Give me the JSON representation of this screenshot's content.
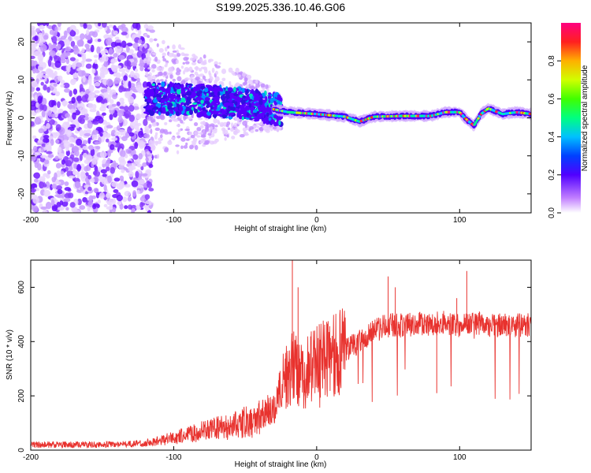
{
  "title": "S199.2025.336.10.46.G06",
  "colors": {
    "snr_line": "#e8322e",
    "axis": "#000000",
    "background": "#ffffff"
  },
  "chart_data": [
    {
      "type": "heatmap",
      "name": "spectrogram",
      "xlabel": "Height of straight line (km)",
      "ylabel": "Frequency (Hz)",
      "xlim": [
        -200,
        150
      ],
      "ylim": [
        -25,
        25
      ],
      "x_ticks": [
        -200,
        -100,
        0,
        100
      ],
      "x_tick_labels": [
        "-200",
        "-100",
        "0",
        "100"
      ],
      "y_ticks": [
        -20,
        -10,
        0,
        10,
        20
      ],
      "y_tick_labels": [
        "-20",
        "-10",
        "0",
        "10",
        "20"
      ],
      "ridge": {
        "x": [
          -120,
          -100,
          -80,
          -60,
          -40,
          -20,
          0,
          20,
          30,
          40,
          60,
          80,
          90,
          100,
          105,
          110,
          115,
          120,
          130,
          140,
          150
        ],
        "freq": [
          5,
          5,
          4.5,
          4,
          3,
          1.5,
          1,
          0.3,
          -1,
          0.3,
          0.5,
          0.5,
          1.5,
          1.5,
          -0.5,
          -2,
          1,
          2.5,
          1,
          1.5,
          1
        ]
      },
      "colorbar": {
        "label": "Normalized spectral amplitude",
        "range": [
          0,
          1
        ],
        "ticks": [
          0.0,
          0.2,
          0.4,
          0.6,
          0.8
        ],
        "tick_labels": [
          "0.0",
          "0.2",
          "0.4",
          "0.6",
          "0.8"
        ]
      }
    },
    {
      "type": "line",
      "name": "snr",
      "xlabel": "Height of straight line (km)",
      "ylabel": "SNR (10 * v/v)",
      "xlim": [
        -200,
        150
      ],
      "ylim": [
        0,
        700
      ],
      "x_ticks": [
        -200,
        -100,
        0,
        100
      ],
      "x_tick_labels": [
        "-200",
        "-100",
        "0",
        "100"
      ],
      "y_ticks": [
        0,
        200,
        400,
        600
      ],
      "y_tick_labels": [
        "0",
        "200",
        "400",
        "600"
      ],
      "envelope": {
        "x": [
          -200,
          -150,
          -120,
          -100,
          -80,
          -60,
          -40,
          -30,
          -25,
          -20,
          -15,
          -10,
          -5,
          0,
          10,
          20,
          30,
          40,
          50,
          60,
          70,
          80,
          90,
          100,
          110,
          120,
          130,
          140,
          150
        ],
        "y": [
          20,
          20,
          25,
          45,
          70,
          90,
          120,
          160,
          230,
          280,
          320,
          260,
          300,
          320,
          340,
          370,
          400,
          440,
          460,
          460,
          465,
          465,
          470,
          460,
          470,
          460,
          460,
          460,
          460
        ]
      },
      "spikes": [
        {
          "x": -17,
          "y": 700
        },
        {
          "x": -13,
          "y": 600
        },
        {
          "x": 50,
          "y": 640
        },
        {
          "x": 55,
          "y": 600
        },
        {
          "x": 105,
          "y": 660
        },
        {
          "x": 98,
          "y": 560
        },
        {
          "x": 84,
          "y": 210
        }
      ]
    }
  ]
}
